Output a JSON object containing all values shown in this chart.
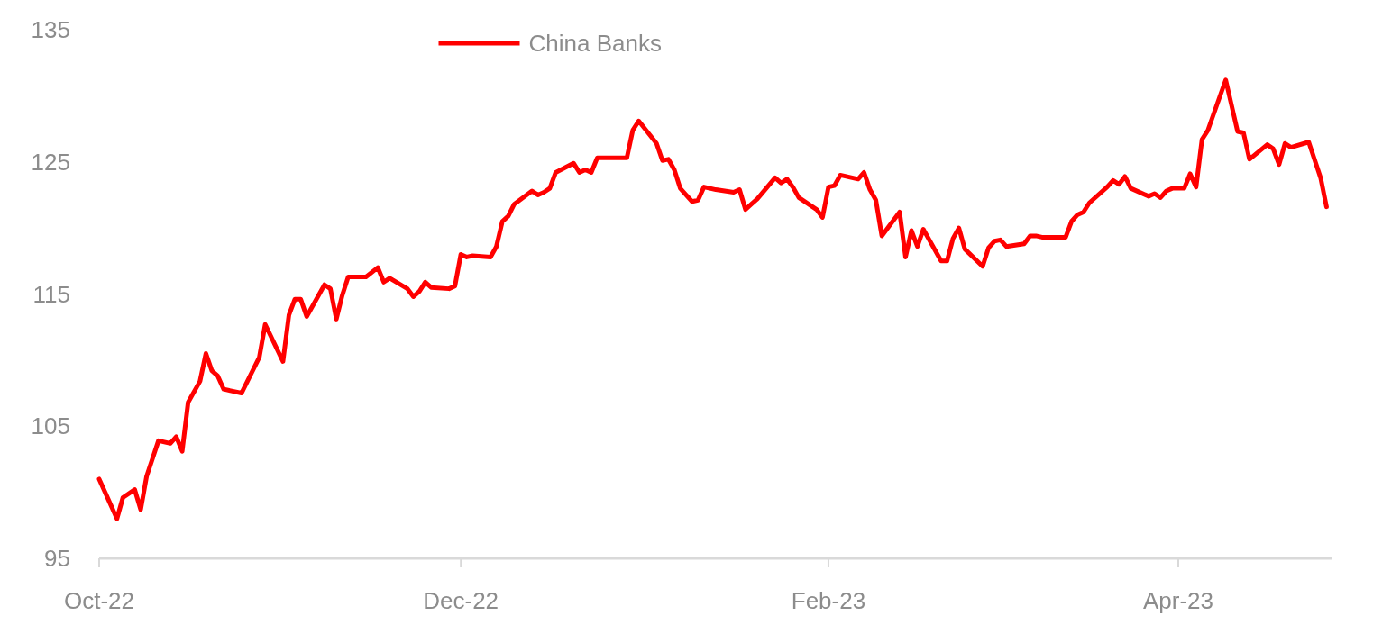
{
  "chart_data": {
    "type": "line",
    "legend": "top",
    "xlim": [
      "2022-10-01",
      "2023-04-27"
    ],
    "xticks": [
      {
        "value": "2022-10-01",
        "label": "Oct-22"
      },
      {
        "value": "2022-12-01",
        "label": "Dec-22"
      },
      {
        "value": "2023-02-01",
        "label": "Feb-23"
      },
      {
        "value": "2023-04-01",
        "label": "Apr-23"
      }
    ],
    "ylim": [
      95,
      135
    ],
    "yticks": [
      95,
      105,
      115,
      125,
      135
    ],
    "grid": false,
    "marker": "none",
    "line_style": "solid",
    "x": [
      "2022-10-01",
      "2022-10-02",
      "2022-10-04",
      "2022-10-05",
      "2022-10-07",
      "2022-10-08",
      "2022-10-09",
      "2022-10-11",
      "2022-10-13",
      "2022-10-14",
      "2022-10-15",
      "2022-10-16",
      "2022-10-18",
      "2022-10-19",
      "2022-10-20",
      "2022-10-21",
      "2022-10-22",
      "2022-10-25",
      "2022-10-28",
      "2022-10-29",
      "2022-11-01",
      "2022-11-02",
      "2022-11-03",
      "2022-11-04",
      "2022-11-05",
      "2022-11-08",
      "2022-11-09",
      "2022-11-10",
      "2022-11-11",
      "2022-11-12",
      "2022-11-15",
      "2022-11-17",
      "2022-11-18",
      "2022-11-19",
      "2022-11-22",
      "2022-11-23",
      "2022-11-24",
      "2022-11-25",
      "2022-11-26",
      "2022-11-29",
      "2022-11-30",
      "2022-12-01",
      "2022-12-02",
      "2022-12-03",
      "2022-12-06",
      "2022-12-07",
      "2022-12-08",
      "2022-12-09",
      "2022-12-10",
      "2022-12-13",
      "2022-12-14",
      "2022-12-15",
      "2022-12-16",
      "2022-12-17",
      "2022-12-20",
      "2022-12-21",
      "2022-12-22",
      "2022-12-23",
      "2022-12-24",
      "2022-12-27",
      "2022-12-29",
      "2022-12-30",
      "2022-12-31",
      "2023-01-03",
      "2023-01-04",
      "2023-01-05",
      "2023-01-06",
      "2023-01-07",
      "2023-01-09",
      "2023-01-10",
      "2023-01-11",
      "2023-01-13",
      "2023-01-16",
      "2023-01-17",
      "2023-01-18",
      "2023-01-19",
      "2023-01-20",
      "2023-01-23",
      "2023-01-24",
      "2023-01-25",
      "2023-01-26",
      "2023-01-27",
      "2023-01-30",
      "2023-01-31",
      "2023-02-01",
      "2023-02-02",
      "2023-02-03",
      "2023-02-06",
      "2023-02-07",
      "2023-02-08",
      "2023-02-09",
      "2023-02-10",
      "2023-02-13",
      "2023-02-14",
      "2023-02-15",
      "2023-02-16",
      "2023-02-17",
      "2023-02-20",
      "2023-02-21",
      "2023-02-22",
      "2023-02-23",
      "2023-02-24",
      "2023-02-27",
      "2023-02-28",
      "2023-03-01",
      "2023-03-02",
      "2023-03-03",
      "2023-03-06",
      "2023-03-07",
      "2023-03-08",
      "2023-03-09",
      "2023-03-13",
      "2023-03-14",
      "2023-03-15",
      "2023-03-16",
      "2023-03-17",
      "2023-03-20",
      "2023-03-21",
      "2023-03-22",
      "2023-03-23",
      "2023-03-24",
      "2023-03-27",
      "2023-03-28",
      "2023-03-29",
      "2023-03-30",
      "2023-03-31",
      "2023-04-02",
      "2023-04-03",
      "2023-04-04",
      "2023-04-05",
      "2023-04-06",
      "2023-04-09",
      "2023-04-11",
      "2023-04-12",
      "2023-04-13",
      "2023-04-16",
      "2023-04-17",
      "2023-04-18",
      "2023-04-19",
      "2023-04-20",
      "2023-04-23",
      "2023-04-25",
      "2023-04-26"
    ],
    "series": [
      {
        "name": "China Banks",
        "color": "#ff0000",
        "values": [
          101.0,
          100.0,
          98.0,
          99.6,
          100.2,
          98.7,
          101.2,
          103.9,
          103.7,
          104.2,
          103.1,
          106.8,
          108.4,
          110.5,
          109.2,
          108.8,
          107.8,
          107.5,
          110.2,
          112.7,
          109.9,
          113.4,
          114.6,
          114.6,
          113.3,
          115.7,
          115.4,
          113.1,
          114.9,
          116.3,
          116.3,
          117.0,
          115.9,
          116.2,
          115.4,
          114.8,
          115.2,
          115.9,
          115.5,
          115.4,
          115.6,
          118.0,
          117.8,
          117.9,
          117.8,
          118.6,
          120.5,
          120.9,
          121.8,
          122.8,
          122.5,
          122.7,
          123.0,
          124.2,
          124.9,
          124.2,
          124.4,
          124.2,
          125.3,
          125.3,
          125.3,
          127.4,
          128.1,
          126.4,
          125.1,
          125.2,
          124.4,
          123.0,
          122.0,
          122.1,
          123.1,
          122.9,
          122.7,
          122.9,
          121.4,
          121.8,
          122.2,
          123.8,
          123.4,
          123.7,
          123.1,
          122.3,
          121.4,
          120.8,
          123.1,
          123.2,
          124.0,
          123.7,
          124.2,
          122.9,
          122.1,
          119.4,
          121.2,
          117.8,
          119.8,
          118.6,
          119.9,
          117.5,
          117.5,
          119.2,
          120.0,
          118.4,
          117.1,
          118.5,
          119.0,
          119.1,
          118.6,
          118.8,
          119.4,
          119.4,
          119.3,
          119.3,
          120.5,
          121.0,
          121.2,
          121.9,
          123.1,
          123.6,
          123.3,
          123.9,
          123.0,
          122.4,
          122.6,
          122.3,
          122.8,
          123.0,
          123.0,
          124.1,
          123.1,
          126.7,
          127.4,
          131.2,
          127.3,
          127.2,
          125.2,
          126.3,
          126.0,
          124.8,
          126.4,
          126.1,
          126.5,
          123.8,
          121.6
        ]
      }
    ]
  }
}
